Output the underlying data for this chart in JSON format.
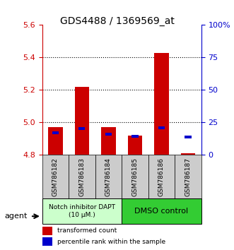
{
  "title": "GDS4488 / 1369569_at",
  "samples": [
    "GSM786182",
    "GSM786183",
    "GSM786184",
    "GSM786185",
    "GSM786186",
    "GSM786187"
  ],
  "red_tops": [
    4.97,
    5.22,
    4.97,
    4.92,
    5.43,
    4.81
  ],
  "blue_tops": [
    4.935,
    4.963,
    4.928,
    4.915,
    4.968,
    4.91
  ],
  "bar_bottom": 4.8,
  "ylim": [
    4.8,
    5.6
  ],
  "yticks_red": [
    4.8,
    5.0,
    5.2,
    5.4,
    5.6
  ],
  "yticks_blue": [
    0,
    25,
    50,
    75,
    100
  ],
  "ytick_blue_labels": [
    "0",
    "25",
    "50",
    "75",
    "100%"
  ],
  "group1_label": "Notch inhibitor DAPT\n(10 μM.)",
  "group2_label": "DMSO control",
  "agent_label": "agent",
  "legend1": "transformed count",
  "legend2": "percentile rank within the sample",
  "red_color": "#cc0000",
  "blue_color": "#0000cc",
  "group1_bg": "#ccffcc",
  "group2_bg": "#33cc33",
  "xticklabel_bg": "#cccccc",
  "bar_width": 0.55
}
